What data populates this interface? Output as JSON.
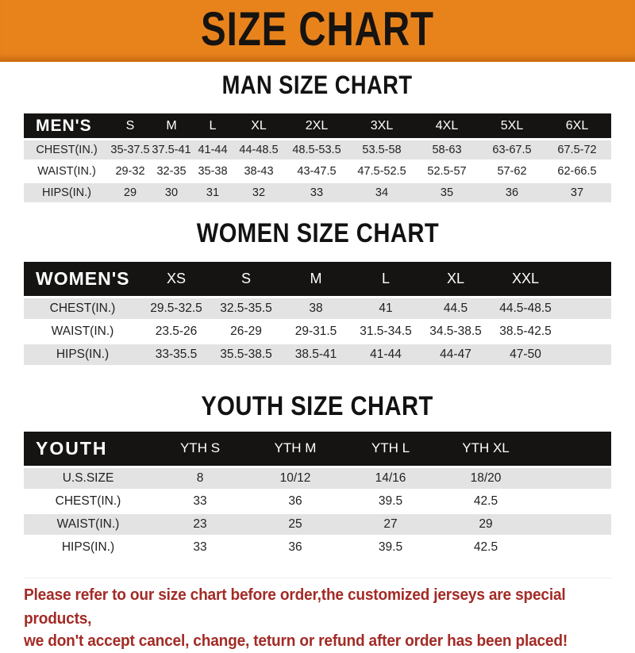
{
  "banner": {
    "title": "SIZE CHART",
    "bg_color": "#E8831C",
    "text_color": "#161310"
  },
  "sections": [
    {
      "title": "MAN SIZE CHART",
      "header_label": "MEN'S",
      "columns": [
        "S",
        "M",
        "L",
        "XL",
        "2XL",
        "3XL",
        "4XL",
        "5XL",
        "6XL"
      ],
      "rows": [
        {
          "label": "CHEST(IN.)",
          "values": [
            "35-37.5",
            "37.5-41",
            "41-44",
            "44-48.5",
            "48.5-53.5",
            "53.5-58",
            "58-63",
            "63-67.5",
            "67.5-72"
          ]
        },
        {
          "label": "WAIST(IN.)",
          "values": [
            "29-32",
            "32-35",
            "35-38",
            "38-43",
            "43-47.5",
            "47.5-52.5",
            "52.5-57",
            "57-62",
            "62-66.5"
          ]
        },
        {
          "label": "HIPS(IN.)",
          "values": [
            "29",
            "30",
            "31",
            "32",
            "33",
            "34",
            "35",
            "36",
            "37"
          ]
        }
      ]
    },
    {
      "title": "WOMEN SIZE CHART",
      "header_label": "WOMEN'S",
      "columns": [
        "XS",
        "S",
        "M",
        "L",
        "XL",
        "XXL"
      ],
      "rows": [
        {
          "label": "CHEST(IN.)",
          "values": [
            "29.5-32.5",
            "32.5-35.5",
            "38",
            "41",
            "44.5",
            "44.5-48.5"
          ]
        },
        {
          "label": "WAIST(IN.)",
          "values": [
            "23.5-26",
            "26-29",
            "29-31.5",
            "31.5-34.5",
            "34.5-38.5",
            "38.5-42.5"
          ]
        },
        {
          "label": "HIPS(IN.)",
          "values": [
            "33-35.5",
            "35.5-38.5",
            "38.5-41",
            "41-44",
            "44-47",
            "47-50"
          ]
        }
      ]
    },
    {
      "title": "YOUTH SIZE CHART",
      "header_label": "YOUTH",
      "columns": [
        "YTH S",
        "YTH M",
        "YTH L",
        "YTH XL"
      ],
      "rows": [
        {
          "label": "U.S.SIZE",
          "values": [
            "8",
            "10/12",
            "14/16",
            "18/20"
          ]
        },
        {
          "label": "CHEST(IN.)",
          "values": [
            "33",
            "36",
            "39.5",
            "42.5"
          ]
        },
        {
          "label": "WAIST(IN.)",
          "values": [
            "23",
            "25",
            "27",
            "29"
          ]
        },
        {
          "label": "HIPS(IN.)",
          "values": [
            "33",
            "36",
            "39.5",
            "42.5"
          ]
        }
      ]
    }
  ],
  "footer": {
    "line1": "Please refer to our size chart before order,the customized jerseys are special products,",
    "line2": "we don't accept cancel, change, teturn or refund after order has been placed!",
    "text_color": "#A32B26"
  },
  "colors": {
    "header_bar": "#151413",
    "stripe_row": "#E3E3E3"
  }
}
